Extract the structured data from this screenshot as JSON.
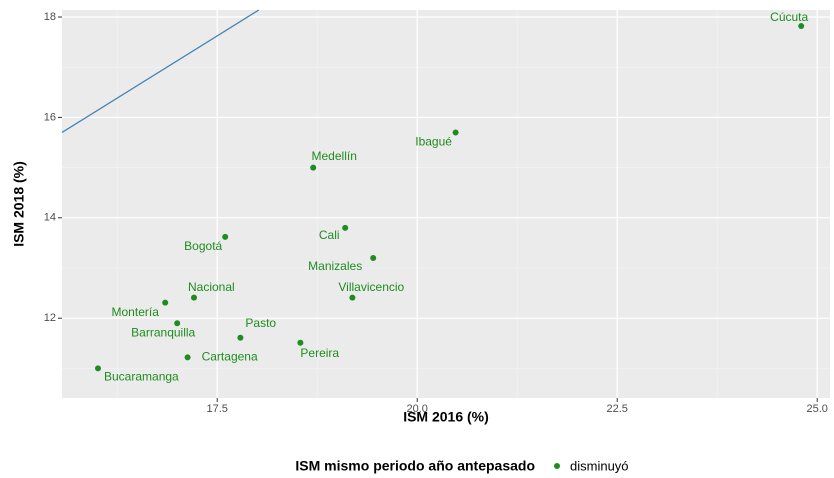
{
  "chart_data": {
    "type": "scatter",
    "x_label": "ISM 2016 (%)",
    "y_label": "ISM 2018 (%)",
    "legend_title": "ISM mismo periodo año antepasado",
    "series": [
      {
        "name": "disminuyó",
        "color": "#1e8c1e",
        "labels": [
          "Cúcuta",
          "Ibagué",
          "Medellín",
          "Cali",
          "Bogotá",
          "Manizales",
          "Villavicencio",
          "Nacional",
          "Montería",
          "Barranquilla",
          "Pasto",
          "Pereira",
          "Cartagena",
          "Bucaramanga"
        ],
        "x": [
          24.8,
          20.48,
          18.7,
          19.1,
          17.6,
          19.45,
          19.19,
          17.21,
          16.85,
          17.0,
          17.79,
          18.54,
          17.13,
          16.01
        ],
        "values": [
          17.82,
          15.7,
          15.0,
          13.8,
          13.62,
          13.2,
          12.41,
          12.41,
          12.31,
          11.9,
          11.61,
          11.51,
          11.22,
          11.0
        ]
      }
    ],
    "reference_line": {
      "color": "#4682b4",
      "x": [
        15.56,
        18.02
      ],
      "y": [
        15.7,
        18.14
      ]
    },
    "xlim": [
      15.56,
      25.16
    ],
    "ylim": [
      10.41,
      18.14
    ],
    "xticks": [
      17.5,
      {
        "value": 20,
        "label": "20.0"
      },
      22.5,
      {
        "value": 25,
        "label": "25.0"
      }
    ],
    "yticks": [
      12,
      14,
      16,
      18
    ],
    "grid": true,
    "legend_position": "bottom"
  }
}
